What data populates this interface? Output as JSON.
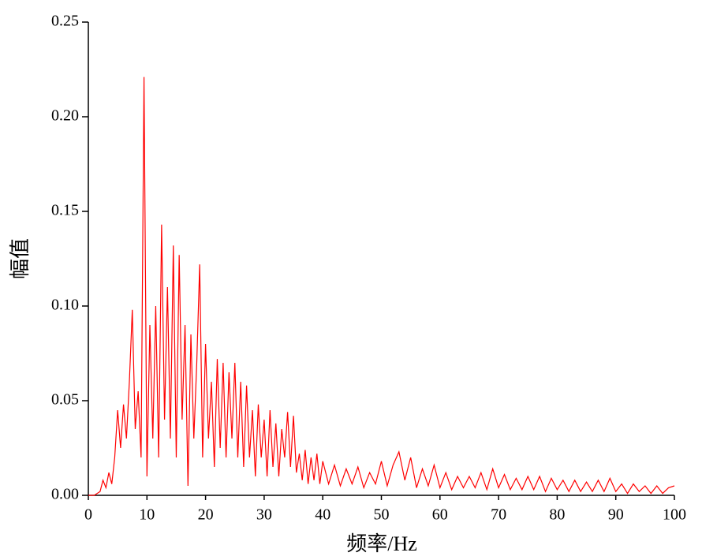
{
  "chart_data": {
    "type": "line",
    "xlabel": "频率/Hz",
    "ylabel": "幅值",
    "color": "#ff0000",
    "xlim": [
      0,
      100
    ],
    "ylim": [
      0,
      0.25
    ],
    "xticks": [
      0,
      10,
      20,
      30,
      40,
      50,
      60,
      70,
      80,
      90,
      100
    ],
    "yticks": [
      {
        "value": 0,
        "label": "0.00"
      },
      {
        "value": 0.05,
        "label": "0.05"
      },
      {
        "value": 0.1,
        "label": "0.10"
      },
      {
        "value": 0.15,
        "label": "0.15"
      },
      {
        "value": 0.2,
        "label": "0.20"
      },
      {
        "value": 0.25,
        "label": "0.25"
      }
    ],
    "x": [
      0,
      0.5,
      1,
      1.5,
      2,
      2.5,
      3,
      3.5,
      4,
      4.5,
      5,
      5.5,
      6,
      6.5,
      7,
      7.5,
      8,
      8.5,
      9,
      9.5,
      10,
      10.5,
      11,
      11.5,
      12,
      12.5,
      13,
      13.5,
      14,
      14.5,
      15,
      15.5,
      16,
      16.5,
      17,
      17.5,
      18,
      18.5,
      19,
      19.5,
      20,
      20.5,
      21,
      21.5,
      22,
      22.5,
      23,
      23.5,
      24,
      24.5,
      25,
      25.5,
      26,
      26.5,
      27,
      27.5,
      28,
      28.5,
      29,
      29.5,
      30,
      30.5,
      31,
      31.5,
      32,
      32.5,
      33,
      33.5,
      34,
      34.5,
      35,
      35.5,
      36,
      36.5,
      37,
      37.5,
      38,
      38.5,
      39,
      39.5,
      40,
      41,
      42,
      43,
      44,
      45,
      46,
      47,
      48,
      49,
      50,
      51,
      52,
      53,
      54,
      55,
      56,
      57,
      58,
      59,
      60,
      61,
      62,
      63,
      64,
      65,
      66,
      67,
      68,
      69,
      70,
      71,
      72,
      73,
      74,
      75,
      76,
      77,
      78,
      79,
      80,
      81,
      82,
      83,
      84,
      85,
      86,
      87,
      88,
      89,
      90,
      91,
      92,
      93,
      94,
      95,
      96,
      97,
      98,
      99,
      100
    ],
    "values": [
      0,
      0,
      0,
      0.001,
      0.002,
      0.008,
      0.004,
      0.012,
      0.006,
      0.02,
      0.045,
      0.025,
      0.048,
      0.03,
      0.06,
      0.098,
      0.035,
      0.055,
      0.02,
      0.221,
      0.01,
      0.09,
      0.03,
      0.1,
      0.02,
      0.143,
      0.04,
      0.11,
      0.03,
      0.132,
      0.02,
      0.127,
      0.04,
      0.09,
      0.005,
      0.085,
      0.03,
      0.07,
      0.122,
      0.02,
      0.08,
      0.03,
      0.06,
      0.015,
      0.072,
      0.025,
      0.07,
      0.02,
      0.065,
      0.03,
      0.07,
      0.02,
      0.06,
      0.015,
      0.058,
      0.02,
      0.045,
      0.01,
      0.048,
      0.02,
      0.04,
      0.01,
      0.045,
      0.015,
      0.038,
      0.01,
      0.035,
      0.02,
      0.044,
      0.015,
      0.042,
      0.012,
      0.022,
      0.008,
      0.024,
      0.006,
      0.02,
      0.008,
      0.022,
      0.006,
      0.018,
      0.006,
      0.016,
      0.005,
      0.014,
      0.006,
      0.015,
      0.004,
      0.012,
      0.006,
      0.018,
      0.005,
      0.016,
      0.023,
      0.008,
      0.02,
      0.004,
      0.014,
      0.005,
      0.016,
      0.004,
      0.012,
      0.003,
      0.01,
      0.004,
      0.01,
      0.004,
      0.012,
      0.003,
      0.014,
      0.004,
      0.011,
      0.003,
      0.009,
      0.003,
      0.01,
      0.003,
      0.01,
      0.002,
      0.009,
      0.003,
      0.008,
      0.002,
      0.008,
      0.002,
      0.007,
      0.002,
      0.008,
      0.002,
      0.009,
      0.002,
      0.006,
      0.001,
      0.006,
      0.002,
      0.005,
      0.001,
      0.005,
      0.001,
      0.004,
      0.005
    ]
  }
}
